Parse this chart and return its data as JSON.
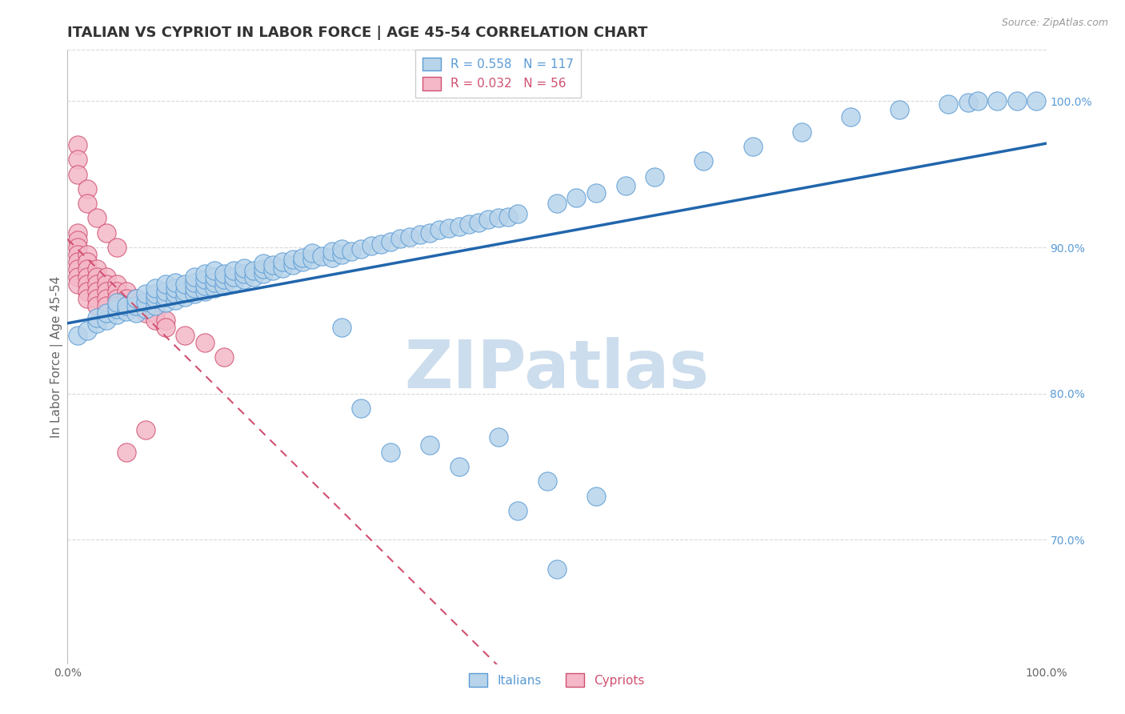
{
  "title": "ITALIAN VS CYPRIOT IN LABOR FORCE | AGE 45-54 CORRELATION CHART",
  "source_text": "Source: ZipAtlas.com",
  "ylabel": "In Labor Force | Age 45-54",
  "xlim": [
    0.0,
    1.0
  ],
  "ylim": [
    0.615,
    1.035
  ],
  "y_tick_labels_right": [
    "70.0%",
    "80.0%",
    "90.0%",
    "100.0%"
  ],
  "y_tick_values_right": [
    0.7,
    0.8,
    0.9,
    1.0
  ],
  "blue_dot_color": "#b8d4ea",
  "blue_dot_edge_color": "#5b9bd5",
  "pink_dot_color": "#f4b8c8",
  "pink_dot_edge_color": "#d05070",
  "blue_line_color": "#2166ac",
  "pink_line_color": "#d05070",
  "watermark_color": "#ccdded",
  "background_color": "#ffffff",
  "grid_color": "#d8d8d8",
  "title_color": "#333333",
  "title_fontsize": 13,
  "axis_label_fontsize": 11,
  "tick_fontsize": 10,
  "italian_x": [
    0.01,
    0.02,
    0.03,
    0.03,
    0.04,
    0.04,
    0.05,
    0.05,
    0.05,
    0.06,
    0.06,
    0.07,
    0.07,
    0.07,
    0.08,
    0.08,
    0.08,
    0.09,
    0.09,
    0.09,
    0.09,
    0.1,
    0.1,
    0.1,
    0.1,
    0.11,
    0.11,
    0.11,
    0.11,
    0.12,
    0.12,
    0.12,
    0.13,
    0.13,
    0.13,
    0.13,
    0.14,
    0.14,
    0.14,
    0.14,
    0.15,
    0.15,
    0.15,
    0.15,
    0.16,
    0.16,
    0.16,
    0.17,
    0.17,
    0.17,
    0.18,
    0.18,
    0.18,
    0.19,
    0.19,
    0.2,
    0.2,
    0.2,
    0.21,
    0.21,
    0.22,
    0.22,
    0.23,
    0.23,
    0.24,
    0.24,
    0.25,
    0.25,
    0.26,
    0.27,
    0.27,
    0.28,
    0.28,
    0.29,
    0.3,
    0.31,
    0.32,
    0.33,
    0.34,
    0.35,
    0.36,
    0.37,
    0.38,
    0.39,
    0.4,
    0.41,
    0.42,
    0.43,
    0.44,
    0.45,
    0.46,
    0.5,
    0.52,
    0.54,
    0.57,
    0.6,
    0.65,
    0.7,
    0.75,
    0.8,
    0.85,
    0.9,
    0.92,
    0.93,
    0.95,
    0.97,
    0.99,
    0.28,
    0.3,
    0.33,
    0.37,
    0.4,
    0.44,
    0.46,
    0.49,
    0.5,
    0.54
  ],
  "italian_y": [
    0.84,
    0.843,
    0.848,
    0.852,
    0.85,
    0.855,
    0.854,
    0.858,
    0.862,
    0.856,
    0.86,
    0.855,
    0.86,
    0.865,
    0.858,
    0.863,
    0.868,
    0.86,
    0.865,
    0.868,
    0.872,
    0.862,
    0.866,
    0.87,
    0.875,
    0.864,
    0.868,
    0.872,
    0.876,
    0.866,
    0.87,
    0.875,
    0.868,
    0.872,
    0.876,
    0.88,
    0.87,
    0.874,
    0.878,
    0.882,
    0.872,
    0.876,
    0.88,
    0.884,
    0.874,
    0.878,
    0.882,
    0.876,
    0.88,
    0.884,
    0.878,
    0.882,
    0.886,
    0.88,
    0.884,
    0.882,
    0.885,
    0.889,
    0.884,
    0.888,
    0.886,
    0.89,
    0.888,
    0.892,
    0.89,
    0.893,
    0.892,
    0.896,
    0.894,
    0.893,
    0.897,
    0.895,
    0.899,
    0.897,
    0.899,
    0.901,
    0.902,
    0.904,
    0.906,
    0.907,
    0.909,
    0.91,
    0.912,
    0.913,
    0.914,
    0.916,
    0.917,
    0.919,
    0.92,
    0.921,
    0.923,
    0.93,
    0.934,
    0.937,
    0.942,
    0.948,
    0.959,
    0.969,
    0.979,
    0.989,
    0.994,
    0.998,
    0.999,
    1.0,
    1.0,
    1.0,
    1.0,
    0.845,
    0.79,
    0.76,
    0.765,
    0.75,
    0.77,
    0.72,
    0.74,
    0.68,
    0.73
  ],
  "cypriot_x": [
    0.01,
    0.01,
    0.01,
    0.01,
    0.01,
    0.01,
    0.01,
    0.01,
    0.02,
    0.02,
    0.02,
    0.02,
    0.02,
    0.02,
    0.02,
    0.03,
    0.03,
    0.03,
    0.03,
    0.03,
    0.03,
    0.04,
    0.04,
    0.04,
    0.04,
    0.04,
    0.05,
    0.05,
    0.05,
    0.05,
    0.06,
    0.06,
    0.06,
    0.07,
    0.07,
    0.08,
    0.08,
    0.09,
    0.09,
    0.1,
    0.1,
    0.12,
    0.14,
    0.16,
    0.01,
    0.01,
    0.01,
    0.02,
    0.02,
    0.03,
    0.04,
    0.05,
    0.06,
    0.08
  ],
  "cypriot_y": [
    0.91,
    0.905,
    0.9,
    0.895,
    0.89,
    0.885,
    0.88,
    0.875,
    0.895,
    0.89,
    0.885,
    0.88,
    0.875,
    0.87,
    0.865,
    0.885,
    0.88,
    0.875,
    0.87,
    0.865,
    0.86,
    0.88,
    0.875,
    0.87,
    0.865,
    0.86,
    0.875,
    0.87,
    0.865,
    0.86,
    0.87,
    0.865,
    0.86,
    0.865,
    0.86,
    0.86,
    0.855,
    0.855,
    0.85,
    0.85,
    0.845,
    0.84,
    0.835,
    0.825,
    0.97,
    0.96,
    0.95,
    0.94,
    0.93,
    0.92,
    0.91,
    0.9,
    0.76,
    0.775
  ]
}
